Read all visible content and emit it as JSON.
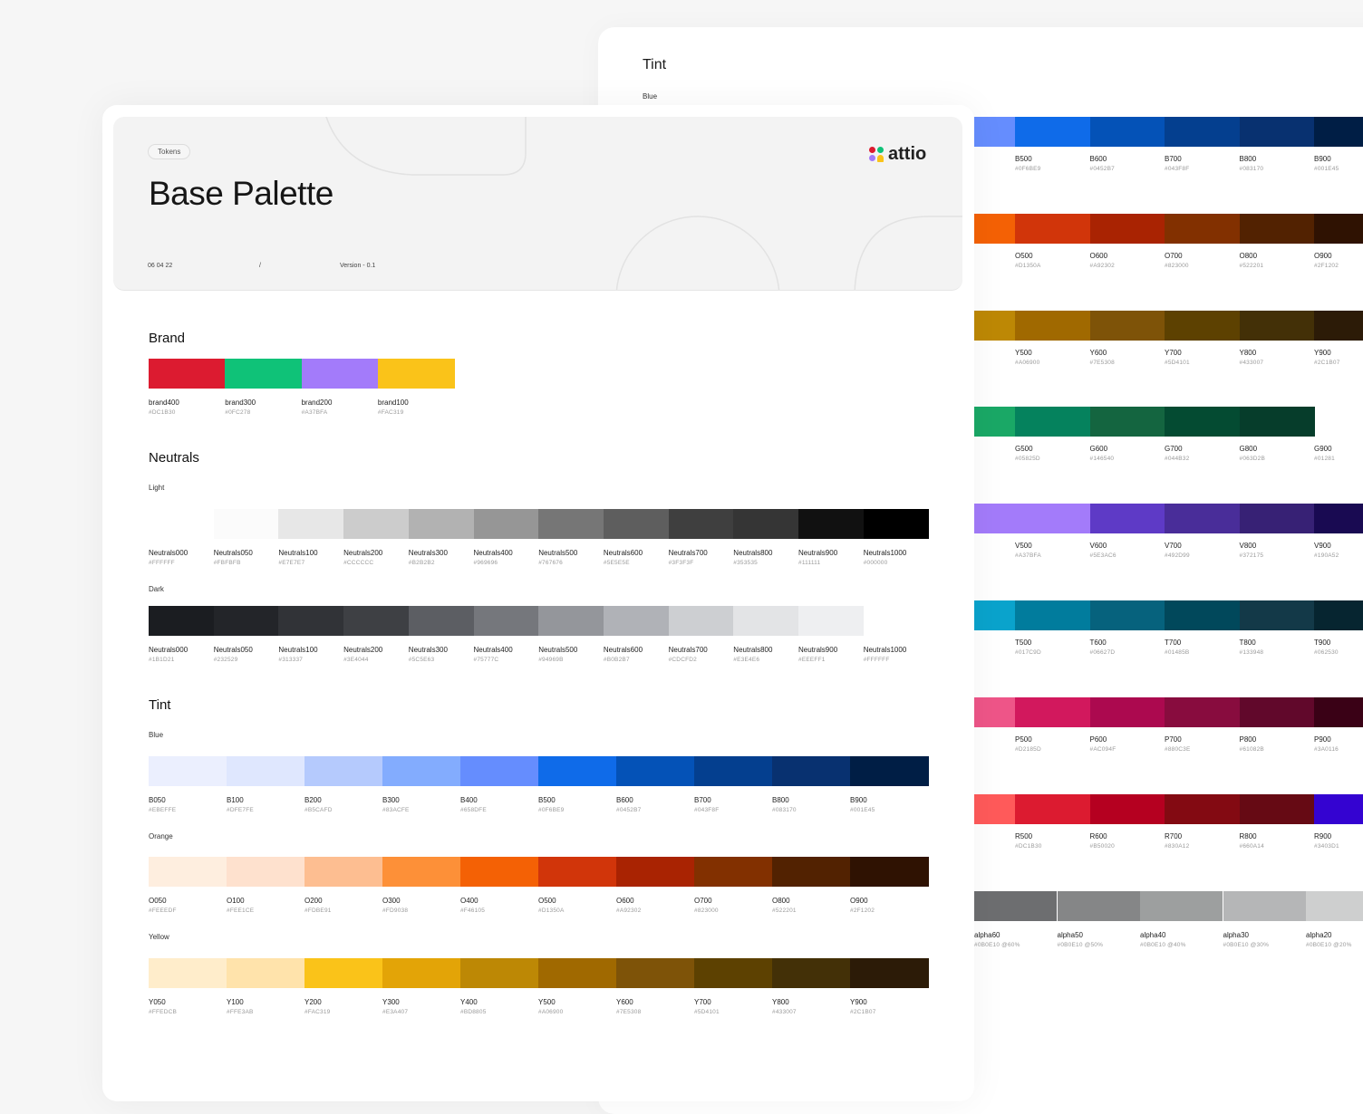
{
  "back_panel": {
    "title": "Tint",
    "subtitle": "Blue"
  },
  "header": {
    "tag": "Tokens",
    "title": "Base Palette",
    "date": "06  04  22",
    "separator": "/",
    "version": "Version - 0.1",
    "logo_text": "attio",
    "logo_colors": [
      "#DC1B30",
      "#0FC278",
      "#A37BFA",
      "#FAC319"
    ]
  },
  "sections": {
    "brand": "Brand",
    "neutrals": "Neutrals",
    "light": "Light",
    "dark": "Dark",
    "tint": "Tint",
    "blue": "Blue",
    "orange": "Orange",
    "yellow": "Yellow"
  },
  "brand": [
    {
      "name": "brand400",
      "hex": "#DC1B30"
    },
    {
      "name": "brand300",
      "hex": "#0FC278"
    },
    {
      "name": "brand200",
      "hex": "#A37BFA"
    },
    {
      "name": "brand100",
      "hex": "#FAC319"
    }
  ],
  "neutrals_light": [
    {
      "name": "Neutrals000",
      "hex": "#FFFFFF"
    },
    {
      "name": "Neutrals050",
      "hex": "#FBFBFB"
    },
    {
      "name": "Neutrals100",
      "hex": "#E7E7E7"
    },
    {
      "name": "Neutrals200",
      "hex": "#CCCCCC"
    },
    {
      "name": "Neutrals300",
      "hex": "#B2B2B2"
    },
    {
      "name": "Neutrals400",
      "hex": "#969696"
    },
    {
      "name": "Neutrals500",
      "hex": "#767676"
    },
    {
      "name": "Neutrals600",
      "hex": "#5E5E5E"
    },
    {
      "name": "Neutrals700",
      "hex": "#3F3F3F"
    },
    {
      "name": "Neutrals800",
      "hex": "#353535"
    },
    {
      "name": "Neutrals900",
      "hex": "#111111"
    },
    {
      "name": "Neutrals1000",
      "hex": "#000000"
    }
  ],
  "neutrals_dark": [
    {
      "name": "Neutrals000",
      "hex": "#1B1D21"
    },
    {
      "name": "Neutrals050",
      "hex": "#232529"
    },
    {
      "name": "Neutrals100",
      "hex": "#313337"
    },
    {
      "name": "Neutrals200",
      "hex": "#3E4044"
    },
    {
      "name": "Neutrals300",
      "hex": "#5C5E63"
    },
    {
      "name": "Neutrals400",
      "hex": "#75777C"
    },
    {
      "name": "Neutrals500",
      "hex": "#94969B"
    },
    {
      "name": "Neutrals600",
      "hex": "#B0B2B7"
    },
    {
      "name": "Neutrals700",
      "hex": "#CDCFD2"
    },
    {
      "name": "Neutrals800",
      "hex": "#E3E4E6"
    },
    {
      "name": "Neutrals900",
      "hex": "#EEEFF1"
    },
    {
      "name": "Neutrals1000",
      "hex": "#FFFFFF"
    }
  ],
  "tint_blue": [
    {
      "name": "B050",
      "hex": "#EBEFFE"
    },
    {
      "name": "B100",
      "hex": "#DFE7FE"
    },
    {
      "name": "B200",
      "hex": "#B5CAFD"
    },
    {
      "name": "B300",
      "hex": "#83ACFE"
    },
    {
      "name": "B400",
      "hex": "#658DFE"
    },
    {
      "name": "B500",
      "hex": "#0F6BE9"
    },
    {
      "name": "B600",
      "hex": "#0452B7"
    },
    {
      "name": "B700",
      "hex": "#043F8F"
    },
    {
      "name": "B800",
      "hex": "#083170"
    },
    {
      "name": "B900",
      "hex": "#001E45"
    }
  ],
  "tint_orange": [
    {
      "name": "O050",
      "hex": "#FEEEDF"
    },
    {
      "name": "O100",
      "hex": "#FEE1CE"
    },
    {
      "name": "O200",
      "hex": "#FDBE91"
    },
    {
      "name": "O300",
      "hex": "#FD9038"
    },
    {
      "name": "O400",
      "hex": "#F46105"
    },
    {
      "name": "O500",
      "hex": "#D1350A"
    },
    {
      "name": "O600",
      "hex": "#A92302"
    },
    {
      "name": "O700",
      "hex": "#823000"
    },
    {
      "name": "O800",
      "hex": "#522201"
    },
    {
      "name": "O900",
      "hex": "#2F1202"
    }
  ],
  "tint_yellow": [
    {
      "name": "Y050",
      "hex": "#FFEDCB"
    },
    {
      "name": "Y100",
      "hex": "#FFE3AB"
    },
    {
      "name": "Y200",
      "hex": "#FAC319"
    },
    {
      "name": "Y300",
      "hex": "#E3A407"
    },
    {
      "name": "Y400",
      "hex": "#BD8805"
    },
    {
      "name": "Y500",
      "hex": "#A06900"
    },
    {
      "name": "Y600",
      "hex": "#7E5308"
    },
    {
      "name": "Y700",
      "hex": "#5D4101"
    },
    {
      "name": "Y800",
      "hex": "#433007"
    },
    {
      "name": "Y900",
      "hex": "#2C1B07"
    }
  ],
  "right_rows": [
    {
      "lead_color": "#658DFE",
      "swatches": [
        {
          "name": "B500",
          "hex": "#0F6BE9"
        },
        {
          "name": "B600",
          "hex": "#0452B7"
        },
        {
          "name": "B700",
          "hex": "#043F8F"
        },
        {
          "name": "B800",
          "hex": "#083170"
        },
        {
          "name": "B900",
          "hex": "#001E45"
        }
      ]
    },
    {
      "lead_color": "#F46105",
      "swatches": [
        {
          "name": "O500",
          "hex": "#D1350A"
        },
        {
          "name": "O600",
          "hex": "#A92302"
        },
        {
          "name": "O700",
          "hex": "#823000"
        },
        {
          "name": "O800",
          "hex": "#522201"
        },
        {
          "name": "O900",
          "hex": "#2F1202"
        }
      ]
    },
    {
      "lead_color": "#BD8805",
      "swatches": [
        {
          "name": "Y500",
          "hex": "#A06900"
        },
        {
          "name": "Y600",
          "hex": "#7E5308"
        },
        {
          "name": "Y700",
          "hex": "#5D4101"
        },
        {
          "name": "Y800",
          "hex": "#433007"
        },
        {
          "name": "Y900",
          "hex": "#2C1B07"
        }
      ]
    },
    {
      "lead_color": "#1AA866",
      "swatches": [
        {
          "name": "G500",
          "hex": "#05825D"
        },
        {
          "name": "G600",
          "hex": "#146540"
        },
        {
          "name": "G700",
          "hex": "#044B32"
        },
        {
          "name": "G800",
          "hex": "#063D2B"
        },
        {
          "name": "G900",
          "hex": "#01281"
        }
      ]
    },
    {
      "lead_color": "#A37BFA",
      "swatches": [
        {
          "name": "V500",
          "hex": "#A37BFA"
        },
        {
          "name": "V600",
          "hex": "#5E3AC6"
        },
        {
          "name": "V700",
          "hex": "#492D99"
        },
        {
          "name": "V800",
          "hex": "#372175"
        },
        {
          "name": "V900",
          "hex": "#190A52"
        }
      ]
    },
    {
      "lead_color": "#0AA3CC",
      "swatches": [
        {
          "name": "T500",
          "hex": "#017C9D"
        },
        {
          "name": "T600",
          "hex": "#06627D"
        },
        {
          "name": "T700",
          "hex": "#01485B"
        },
        {
          "name": "T800",
          "hex": "#133948"
        },
        {
          "name": "T900",
          "hex": "#062530"
        }
      ]
    },
    {
      "lead_color": "#EE5588",
      "swatches": [
        {
          "name": "P500",
          "hex": "#D2185D"
        },
        {
          "name": "P600",
          "hex": "#AC094F"
        },
        {
          "name": "P700",
          "hex": "#880C3E"
        },
        {
          "name": "P800",
          "hex": "#61082B"
        },
        {
          "name": "P900",
          "hex": "#3A0116"
        }
      ]
    },
    {
      "lead_color": "#FF5A5A",
      "swatches": [
        {
          "name": "R500",
          "hex": "#DC1B30"
        },
        {
          "name": "R600",
          "hex": "#B50020"
        },
        {
          "name": "R700",
          "hex": "#830A12"
        },
        {
          "name": "R800",
          "hex": "#660A14"
        },
        {
          "name": "R900",
          "hex": "#3403D1"
        }
      ]
    }
  ],
  "alpha": [
    {
      "name": "alpha60",
      "hex": "#0B0E10 @60%",
      "opacity": 0.6
    },
    {
      "name": "alpha50",
      "hex": "#0B0E10 @50%",
      "opacity": 0.5
    },
    {
      "name": "alpha40",
      "hex": "#0B0E10 @40%",
      "opacity": 0.4
    },
    {
      "name": "alpha30",
      "hex": "#0B0E10 @30%",
      "opacity": 0.3
    },
    {
      "name": "alpha20",
      "hex": "#0B0E10 @20%",
      "opacity": 0.2
    }
  ]
}
